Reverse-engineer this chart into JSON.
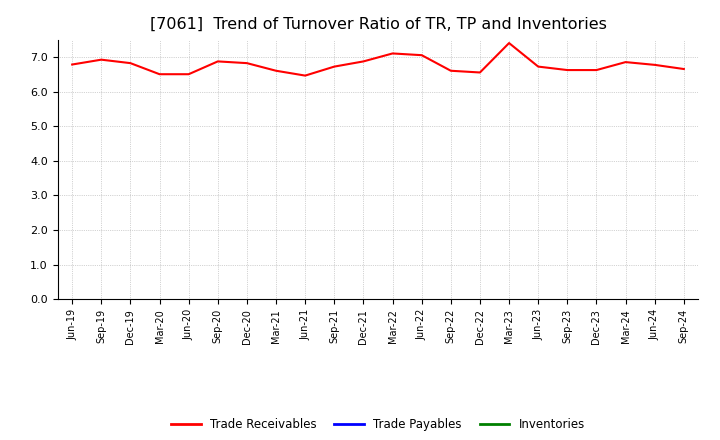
{
  "title": "[7061]  Trend of Turnover Ratio of TR, TP and Inventories",
  "title_fontsize": 11.5,
  "x_labels": [
    "Jun-19",
    "Sep-19",
    "Dec-19",
    "Mar-20",
    "Jun-20",
    "Sep-20",
    "Dec-20",
    "Mar-21",
    "Jun-21",
    "Sep-21",
    "Dec-21",
    "Mar-22",
    "Jun-22",
    "Sep-22",
    "Dec-22",
    "Mar-23",
    "Jun-23",
    "Sep-23",
    "Dec-23",
    "Mar-24",
    "Jun-24",
    "Sep-24"
  ],
  "trade_receivables": [
    6.78,
    6.92,
    6.82,
    6.5,
    6.5,
    6.87,
    6.82,
    6.6,
    6.46,
    6.72,
    6.87,
    7.1,
    7.05,
    6.6,
    6.55,
    7.4,
    6.72,
    6.62,
    6.62,
    6.85,
    6.77,
    6.65
  ],
  "trade_payables": [],
  "inventories": [],
  "ylim": [
    0.0,
    7.5
  ],
  "yticks": [
    0.0,
    1.0,
    2.0,
    3.0,
    4.0,
    5.0,
    6.0,
    7.0
  ],
  "line_color_tr": "#FF0000",
  "line_color_tp": "#0000FF",
  "line_color_inv": "#008000",
  "background_color": "#FFFFFF",
  "plot_bg_color": "#FFFFFF",
  "grid_color": "#AAAAAA",
  "legend_labels": [
    "Trade Receivables",
    "Trade Payables",
    "Inventories"
  ]
}
